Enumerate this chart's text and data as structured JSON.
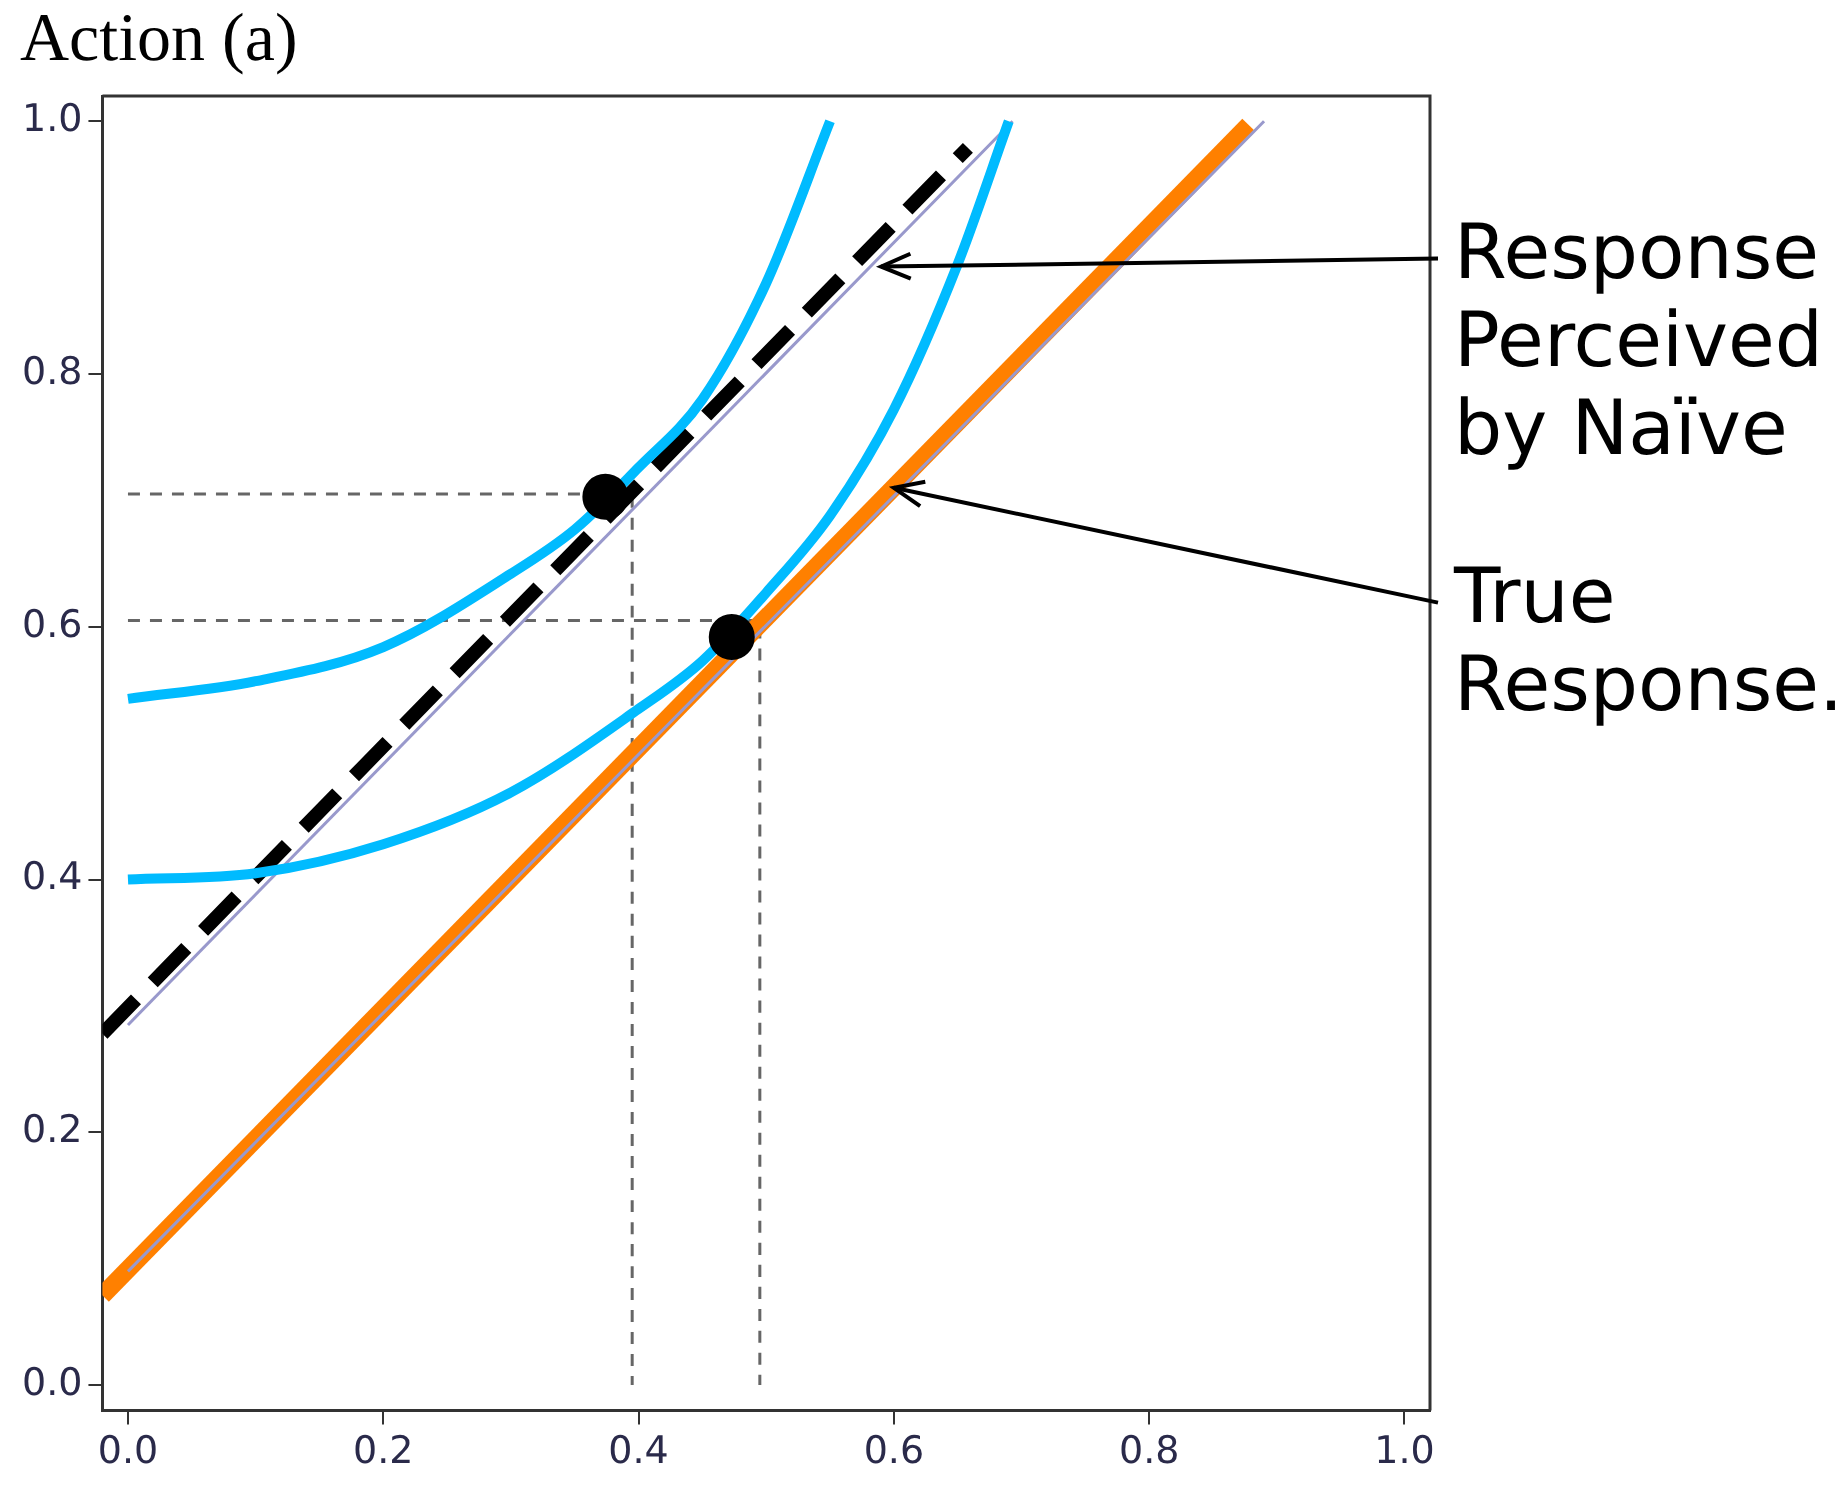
{
  "chart_data": {
    "type": "line",
    "ylabel": "Action (a)",
    "xlim": [
      -0.02,
      1.02
    ],
    "ylim": [
      -0.02,
      1.02
    ],
    "xticks": [
      {
        "value": 0,
        "label": "0.0"
      },
      0.2,
      0.4,
      0.6,
      0.8,
      {
        "value": 1,
        "label": "1.0"
      }
    ],
    "yticks": [
      {
        "value": 0,
        "label": "0.0"
      },
      0.2,
      0.4,
      0.6,
      0.8,
      {
        "value": 1,
        "label": "1.0"
      }
    ],
    "grid": false,
    "legend": false,
    "series": [
      {
        "color": "#00bbff",
        "line_style": "solid",
        "marker": "none",
        "x": [
          0.0,
          0.1,
          0.2,
          0.3,
          0.35,
          0.4,
          0.45,
          0.5,
          0.55
        ],
        "values": [
          0.543,
          0.557,
          0.584,
          0.642,
          0.677,
          0.726,
          0.78,
          0.872,
          1.0
        ]
      },
      {
        "color": "#00bbff",
        "line_style": "solid",
        "marker": "none",
        "x": [
          0.0,
          0.1,
          0.2,
          0.3,
          0.4,
          0.45,
          0.5,
          0.55,
          0.6,
          0.65,
          0.69
        ],
        "values": [
          0.4,
          0.405,
          0.428,
          0.469,
          0.535,
          0.573,
          0.627,
          0.688,
          0.772,
          0.887,
          1.0
        ]
      },
      {
        "color": "#9999cc",
        "line_style": "solid",
        "marker": "none",
        "x": [
          0.0,
          0.693
        ],
        "values": [
          0.285,
          1.0
        ]
      },
      {
        "color": "#9999cc",
        "line_style": "solid",
        "marker": "none",
        "x": [
          0.0,
          0.89
        ],
        "values": [
          0.09,
          1.0
        ]
      },
      {
        "color": "#000000",
        "line_style": "dashed",
        "marker": "none",
        "x": [
          -0.02,
          0.658
        ],
        "values": [
          0.278,
          0.979
        ]
      },
      {
        "color": "#ff8000",
        "line_style": "solid",
        "marker": "none",
        "x": [
          -0.02,
          0.878
        ],
        "values": [
          0.071,
          0.997
        ]
      },
      {
        "color": "#666666",
        "line_style": "dotted",
        "marker": "none",
        "x": [
          0.0,
          0.395,
          0.395
        ],
        "values": [
          0.705,
          0.705,
          0.0
        ]
      },
      {
        "color": "#666666",
        "line_style": "dotted",
        "marker": "none",
        "x": [
          0.0,
          0.495,
          0.495
        ],
        "values": [
          0.605,
          0.605,
          0.0
        ]
      },
      {
        "type": "scatter",
        "color": "#000000",
        "marker": "circle",
        "x": [
          0.374,
          0.473
        ],
        "values": [
          0.703,
          0.592
        ]
      }
    ],
    "annotations": [
      {
        "text": "Response Perceived by Naïve",
        "x": 0.59,
        "y": 0.885
      },
      {
        "text": "True Response.",
        "x": 0.6,
        "y": 0.71
      }
    ]
  }
}
